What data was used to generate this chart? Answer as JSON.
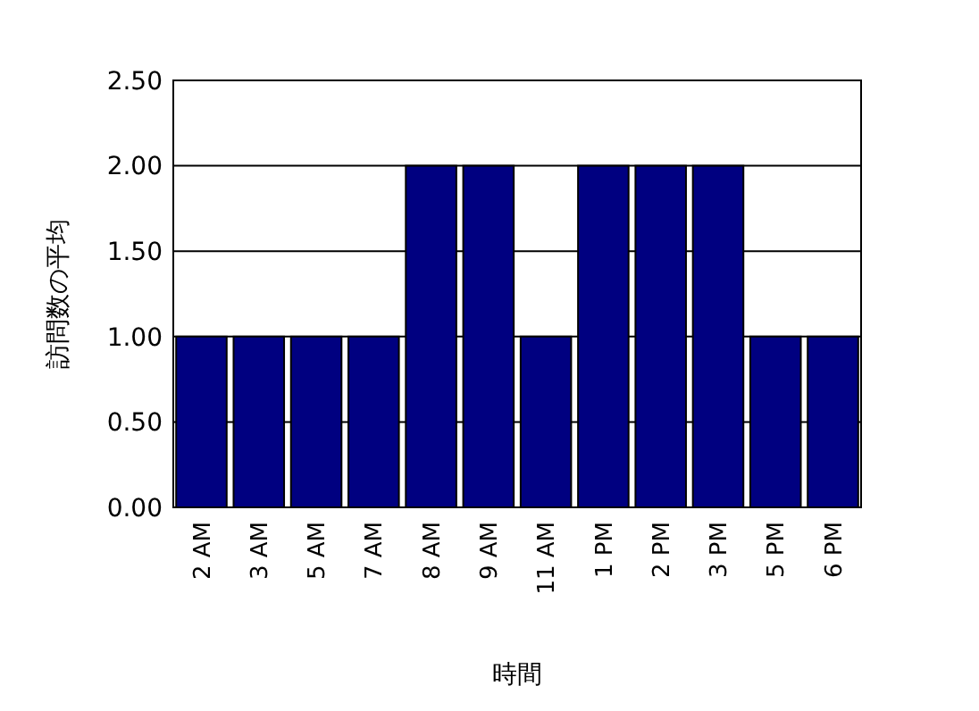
{
  "chart_data": {
    "type": "bar",
    "xlabel": "時間",
    "ylabel": "訪問数の平均",
    "categories": [
      "2 AM",
      "3 AM",
      "5 AM",
      "7 AM",
      "8 AM",
      "9 AM",
      "11 AM",
      "1 PM",
      "2 PM",
      "3 PM",
      "5 PM",
      "6 PM"
    ],
    "values": [
      1,
      1,
      1,
      1,
      2,
      2,
      1,
      2,
      2,
      2,
      1,
      1
    ],
    "color": "#000080",
    "ylim": [
      0,
      2.5
    ],
    "yticks": [
      {
        "value": 0,
        "label": "0.00"
      },
      {
        "value": 0.5,
        "label": "0.50"
      },
      {
        "value": 1,
        "label": "1.00"
      },
      {
        "value": 1.5,
        "label": "1.50"
      },
      {
        "value": 2,
        "label": "2.00"
      },
      {
        "value": 2.5,
        "label": "2.50"
      }
    ],
    "grid": "y"
  }
}
